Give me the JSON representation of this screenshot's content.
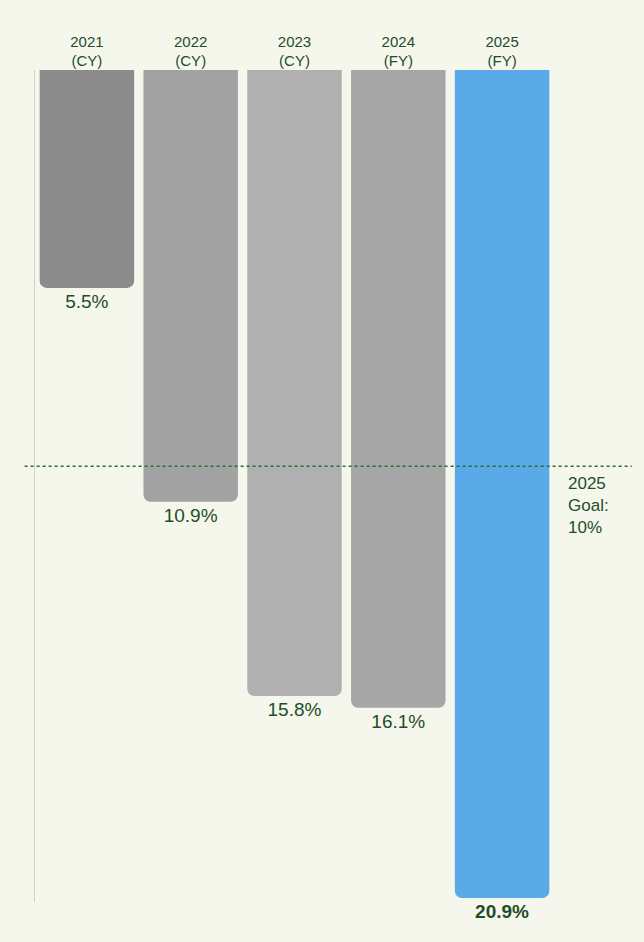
{
  "chart_data": {
    "type": "bar",
    "categories": [
      "2021\n(CY)",
      "2022\n(CY)",
      "2023\n(CY)",
      "2024\n(FY)",
      "2025\n(FY)"
    ],
    "values": [
      5.5,
      10.9,
      15.8,
      16.1,
      20.9
    ],
    "value_labels": [
      "5.5%",
      "10.9%",
      "15.8%",
      "16.1%",
      "20.9%"
    ],
    "colors": [
      "#8c8c8c",
      "#a2a2a2",
      "#b0b0b0",
      "#a6a6a6",
      "#5aaae8"
    ],
    "ylim": [
      0,
      21
    ],
    "yticks": [],
    "data_labels": true,
    "tick_labels": "x",
    "grid": false,
    "annotations": [
      {
        "text": "2025\nGoal:\n10%",
        "value": 10,
        "line_style": "dotted"
      }
    ]
  }
}
